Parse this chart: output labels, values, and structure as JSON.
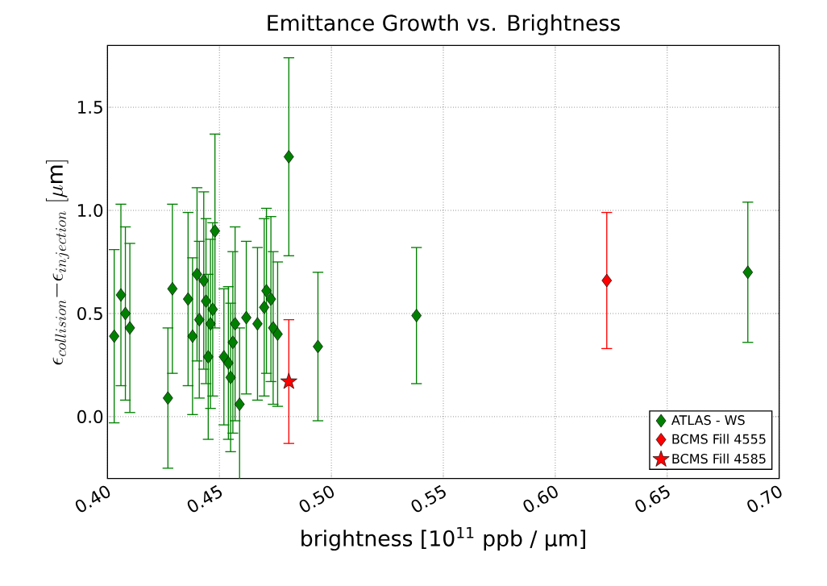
{
  "chart_data": {
    "type": "scatter",
    "title": "Emittance Growth vs. Brightness",
    "xlabel": "brightness [10$^{11}$ ppb / μm]",
    "ylabel": "\\epsilon_{collision}{-}\\epsilon_{injection}\\ [\\mu\\mathrm{m}]",
    "series": [
      {
        "name": "ATLAS - WS",
        "color": "#008000",
        "marker": "diamond",
        "x": [
          0.403,
          0.406,
          0.408,
          0.41,
          0.429,
          0.427,
          0.436,
          0.438,
          0.44,
          0.443,
          0.441,
          0.448,
          0.444,
          0.447,
          0.446,
          0.445,
          0.457,
          0.462,
          0.467,
          0.456,
          0.452,
          0.454,
          0.455,
          0.459,
          0.471,
          0.473,
          0.47,
          0.474,
          0.476,
          0.481,
          0.494,
          0.538,
          0.686
        ],
        "values": [
          0.39,
          0.59,
          0.5,
          0.43,
          0.62,
          0.09,
          0.57,
          0.39,
          0.69,
          0.66,
          0.47,
          0.9,
          0.56,
          0.52,
          0.45,
          0.29,
          0.45,
          0.48,
          0.45,
          0.36,
          0.29,
          0.26,
          0.19,
          0.06,
          0.61,
          0.57,
          0.53,
          0.43,
          0.4,
          1.26,
          0.34,
          0.49,
          0.7
        ],
        "errors": [
          0.42,
          0.44,
          0.42,
          0.41,
          0.41,
          0.34,
          0.42,
          0.38,
          0.42,
          0.43,
          0.38,
          0.47,
          0.4,
          0.42,
          0.41,
          0.4,
          0.47,
          0.37,
          0.37,
          0.44,
          0.33,
          0.37,
          0.36,
          0.37,
          0.4,
          0.4,
          0.43,
          0.37,
          0.35,
          0.48,
          0.36,
          0.33,
          0.34
        ]
      },
      {
        "name": "BCMS Fill 4555",
        "color": "#ff0000",
        "marker": "diamond",
        "x": [
          0.623
        ],
        "values": [
          0.66
        ],
        "errors": [
          0.33
        ]
      },
      {
        "name": "BCMS Fill 4585",
        "color": "#ff0000",
        "marker": "star",
        "x": [
          0.481
        ],
        "values": [
          0.17
        ],
        "errors": [
          0.3
        ]
      }
    ],
    "xlim": [
      0.4,
      0.7
    ],
    "ylim": [
      -0.3,
      1.8
    ],
    "xticks": [
      {
        "value": 0.4,
        "label": "0.40"
      },
      {
        "value": 0.45,
        "label": "0.45"
      },
      {
        "value": 0.5,
        "label": "0.50"
      },
      {
        "value": 0.55,
        "label": "0.55"
      },
      {
        "value": 0.6,
        "label": "0.60"
      },
      {
        "value": 0.65,
        "label": "0.65"
      },
      {
        "value": 0.7,
        "label": "0.70"
      }
    ],
    "yticks": [
      {
        "value": 0.0,
        "label": "0.0"
      },
      {
        "value": 0.5,
        "label": "0.5"
      },
      {
        "value": 1.0,
        "label": "1.0"
      },
      {
        "value": 1.5,
        "label": "1.5"
      }
    ],
    "grid": true,
    "legend": "bottom right"
  }
}
